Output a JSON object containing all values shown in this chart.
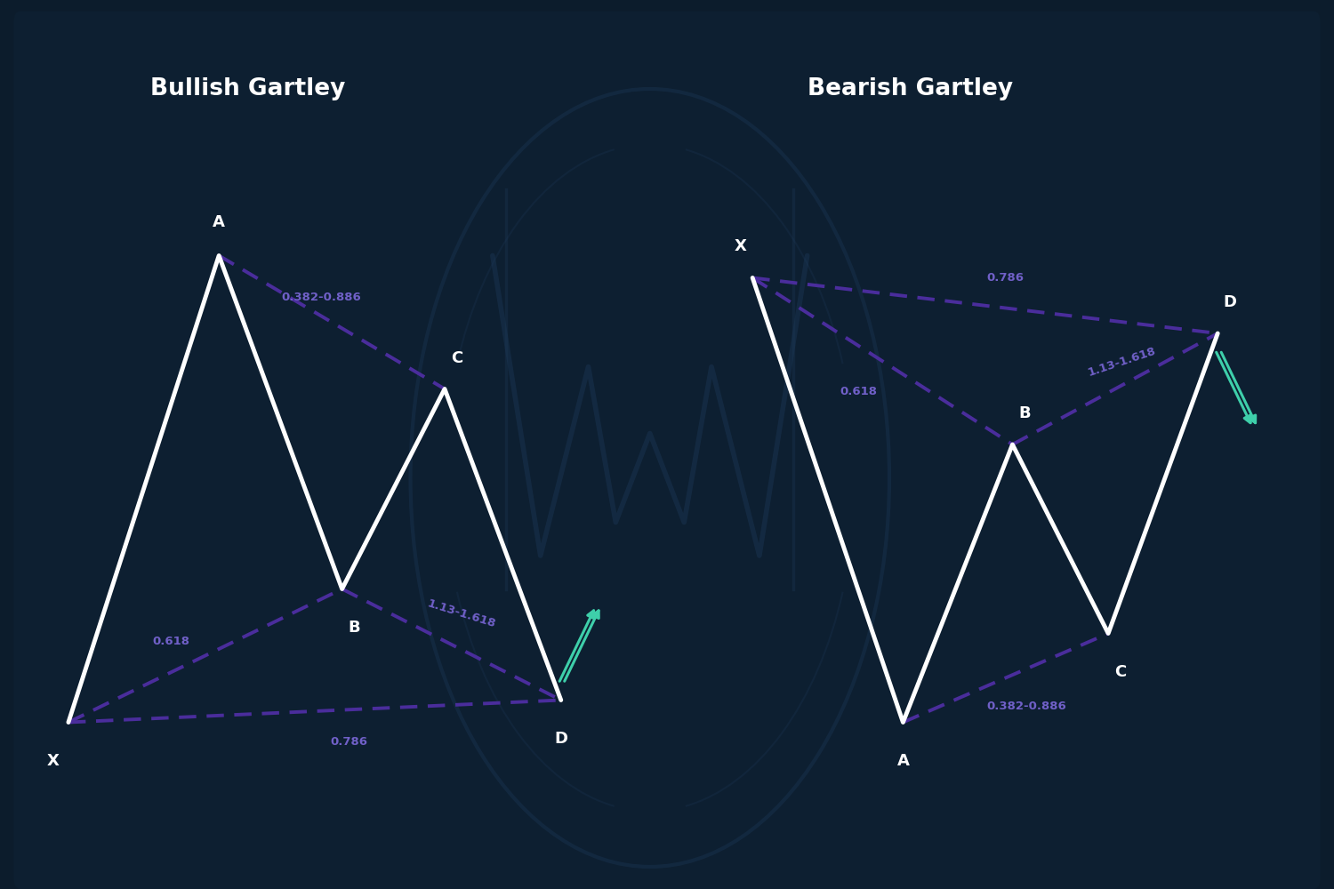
{
  "bg_color": "#0c1c2c",
  "bg_color_rect": "#0e2236",
  "white_line_color": "#ffffff",
  "dashed_line_color": "#4a2d9c",
  "label_color": "#7060c8",
  "arrow_color": "#3ecfaa",
  "title_color": "#ffffff",
  "point_label_color": "#ffffff",
  "bullish_title": "Bullish Gartley",
  "bearish_title": "Bearish Gartley",
  "bullish_points": {
    "X": [
      1.0,
      2.0
    ],
    "A": [
      3.2,
      6.2
    ],
    "B": [
      5.0,
      3.2
    ],
    "C": [
      6.5,
      5.0
    ],
    "D": [
      8.2,
      2.2
    ]
  },
  "bearish_points": {
    "X": [
      11.0,
      6.0
    ],
    "A": [
      13.2,
      2.0
    ],
    "B": [
      14.8,
      4.5
    ],
    "C": [
      16.2,
      2.8
    ],
    "D": [
      17.8,
      5.5
    ]
  },
  "bullish_labels": {
    "AC_ratio": "0.382-0.886",
    "XB_ratio": "0.618",
    "XD_ratio": "0.786",
    "BD_ratio": "1.13-1.618"
  },
  "bearish_labels": {
    "XD_ratio": "0.786",
    "XB_ratio": "0.618",
    "AC_ratio": "0.382-0.886",
    "BD_ratio": "1.13-1.618"
  },
  "xlim": [
    0.0,
    19.5
  ],
  "ylim": [
    0.5,
    8.5
  ],
  "watermark_color": "#1e3a5a",
  "watermark_alpha": 0.35
}
